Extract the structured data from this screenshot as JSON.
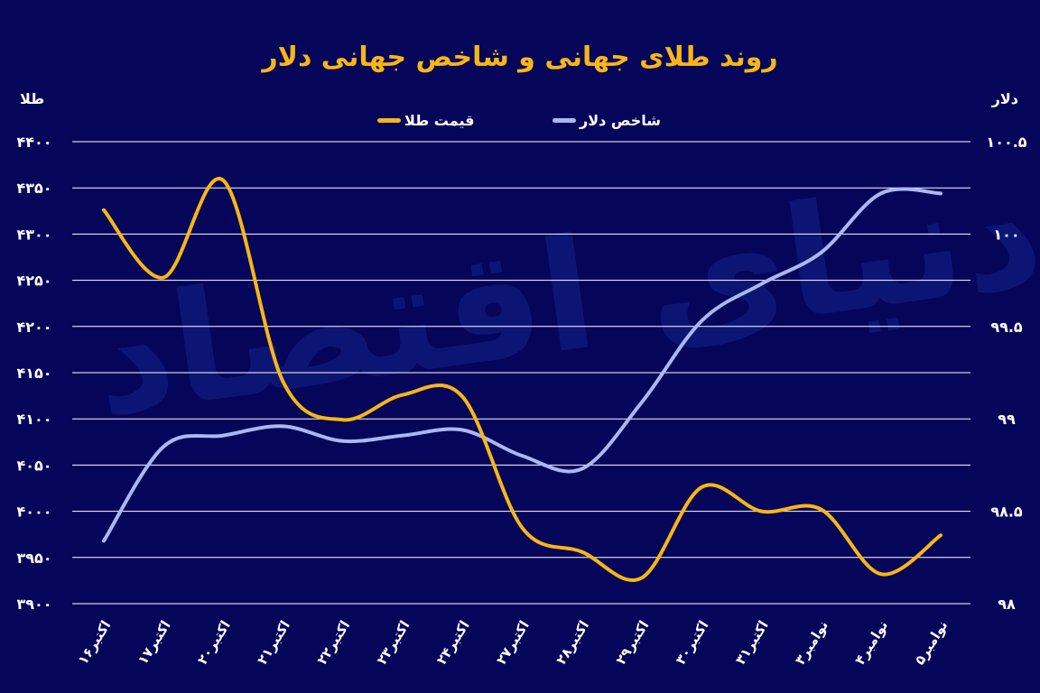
{
  "chart_data": {
    "type": "line",
    "title": "روند طلای جهانی و شاخص جهانی دلار",
    "y_left_label": "طلا",
    "y_right_label": "دلار",
    "categories": [
      "۱۶اکتبر",
      "۱۷اکتبر",
      "۲۰اکتبر",
      "۲۱اکتبر",
      "۲۲اکتبر",
      "۲۳اکتبر",
      "۲۴اکتبر",
      "۲۷اکتبر",
      "۲۸اکتبر",
      "۲۹اکتبر",
      "۳۰اکتبر",
      "۳۱اکتبر",
      "۳نوامبر",
      "۴نوامبر",
      "۵نوامبر"
    ],
    "y_left_ticks": [
      "۳۹۰۰",
      "۳۹۵۰",
      "۴۰۰۰",
      "۴۰۵۰",
      "۴۱۰۰",
      "۴۱۵۰",
      "۴۲۰۰",
      "۴۲۵۰",
      "۴۳۰۰",
      "۴۳۵۰",
      "۴۴۰۰"
    ],
    "y_right_ticks": [
      "۹۸",
      "۹۸.۵",
      "۹۹",
      "۹۹.۵",
      "۱۰۰",
      "۱۰۰.۵"
    ],
    "ylim_left": [
      3900,
      4400
    ],
    "ylim_right": [
      98,
      100.5
    ],
    "grid": true,
    "legend_placement": "top-center",
    "series": [
      {
        "name": "قیمت طلا",
        "axis": "left",
        "color": "#f7b617",
        "values": [
          4326,
          4253,
          4358,
          4140,
          4099,
          4126,
          4124,
          3982,
          3956,
          3928,
          4026,
          4000,
          4002,
          3932,
          3974
        ]
      },
      {
        "name": "شاخص دلار",
        "axis": "right",
        "color": "#aab8ef",
        "values": [
          98.34,
          98.85,
          98.91,
          98.96,
          98.88,
          98.91,
          98.94,
          98.8,
          98.73,
          99.09,
          99.53,
          99.73,
          99.9,
          100.22,
          100.22
        ]
      }
    ]
  },
  "watermark": "دنیای اقتصاد",
  "colors": {
    "background": "#05055a",
    "grid": "#ffffff"
  }
}
